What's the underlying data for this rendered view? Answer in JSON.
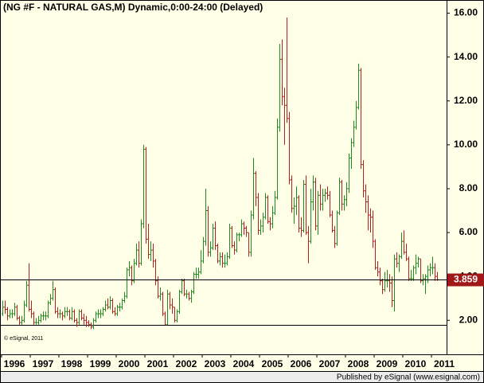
{
  "chart_data": {
    "type": "ohlc",
    "title": "(NG #F - NATURAL GAS,M) Dynamic,0:00-24:00 (Delayed)",
    "watermark": "© eSignal, 2011",
    "footer": "Published by eSignal (www.esignal.com)",
    "up_color": "#1f8a1f",
    "down_color": "#b02020",
    "categories": [
      "1996",
      null,
      null,
      null,
      null,
      null,
      null,
      null,
      null,
      null,
      null,
      null,
      "1997",
      null,
      null,
      null,
      null,
      null,
      null,
      null,
      null,
      null,
      null,
      null,
      "1998",
      null,
      null,
      null,
      null,
      null,
      null,
      null,
      null,
      null,
      null,
      null,
      "1999",
      null,
      null,
      null,
      null,
      null,
      null,
      null,
      null,
      null,
      null,
      null,
      "2000",
      null,
      null,
      null,
      null,
      null,
      null,
      null,
      null,
      null,
      null,
      null,
      "2001",
      null,
      null,
      null,
      null,
      null,
      null,
      null,
      null,
      null,
      null,
      null,
      "2002",
      null,
      null,
      null,
      null,
      null,
      null,
      null,
      null,
      null,
      null,
      null,
      "2003",
      null,
      null,
      null,
      null,
      null,
      null,
      null,
      null,
      null,
      null,
      null,
      "2004",
      null,
      null,
      null,
      null,
      null,
      null,
      null,
      null,
      null,
      null,
      null,
      "2005",
      null,
      null,
      null,
      null,
      null,
      null,
      null,
      null,
      null,
      null,
      null,
      "2006",
      null,
      null,
      null,
      null,
      null,
      null,
      null,
      null,
      null,
      null,
      null,
      "2007",
      null,
      null,
      null,
      null,
      null,
      null,
      null,
      null,
      null,
      null,
      null,
      "2008",
      null,
      null,
      null,
      null,
      null,
      null,
      null,
      null,
      null,
      null,
      null,
      "2009",
      null,
      null,
      null,
      null,
      null,
      null,
      null,
      null,
      null,
      null,
      null,
      "2010",
      null,
      null,
      null,
      null,
      null,
      null,
      null,
      null,
      null,
      null,
      null,
      "2011",
      null,
      null
    ],
    "open": [
      2.3,
      2.6,
      2.5,
      2.2,
      2.3,
      2.3,
      2.6,
      2.1,
      1.9,
      2.0,
      2.7,
      3.6,
      2.5,
      2.3,
      1.9,
      1.9,
      2.0,
      2.2,
      2.2,
      2.2,
      2.8,
      3.0,
      3.4,
      2.4,
      2.3,
      2.3,
      2.2,
      2.4,
      2.4,
      2.1,
      2.4,
      2.0,
      1.9,
      2.4,
      2.1,
      2.0,
      1.9,
      1.8,
      1.7,
      2.0,
      2.3,
      2.3,
      2.3,
      2.5,
      2.7,
      2.6,
      2.9,
      2.4,
      2.3,
      2.6,
      2.6,
      2.9,
      3.1,
      4.3,
      4.4,
      3.8,
      4.6,
      5.2,
      4.6,
      6.4,
      9.8,
      5.7,
      5.0,
      5.2,
      4.7,
      3.8,
      3.1,
      3.2,
      2.3,
      1.8,
      3.2,
      2.7,
      2.6,
      2.0,
      2.4,
      3.3,
      3.8,
      3.2,
      3.2,
      3.0,
      3.3,
      4.1,
      4.1,
      4.2,
      4.7,
      5.6,
      7.0,
      5.1,
      5.3,
      6.2,
      5.4,
      4.7,
      4.9,
      4.6,
      4.6,
      4.9,
      6.2,
      5.4,
      5.2,
      5.9,
      5.9,
      6.4,
      6.2,
      6.0,
      5.1,
      6.8,
      8.7,
      7.6,
      6.1,
      6.3,
      6.7,
      7.6,
      6.5,
      6.4,
      6.9,
      7.6,
      10.8,
      13.9,
      12.2,
      11.8,
      11.2,
      8.4,
      7.1,
      7.2,
      7.6,
      6.2,
      6.1,
      8.2,
      6.0,
      5.6,
      7.4,
      8.3,
      6.3,
      7.7,
      7.3,
      7.7,
      7.8,
      7.7,
      6.8,
      6.1,
      5.5,
      6.9,
      8.3,
      7.3,
      7.5,
      8.0,
      9.4,
      10.1,
      10.8,
      11.7,
      13.4,
      9.1,
      7.9,
      7.4,
      6.8,
      6.7,
      5.6,
      4.4,
      4.2,
      3.8,
      3.4,
      3.8,
      3.8,
      3.7,
      2.9,
      4.8,
      4.6,
      4.9,
      5.6,
      5.1,
      4.8,
      3.9,
      3.9,
      4.4,
      4.6,
      4.8,
      3.8,
      3.9,
      4.0,
      4.3,
      4.4,
      4.4,
      4.0
    ],
    "high": [
      2.9,
      2.9,
      2.6,
      2.5,
      2.5,
      2.8,
      2.7,
      2.2,
      2.2,
      2.9,
      3.8,
      4.6,
      2.9,
      2.4,
      2.1,
      2.2,
      2.3,
      2.4,
      2.4,
      2.9,
      3.2,
      3.8,
      3.5,
      2.6,
      2.5,
      2.4,
      2.6,
      2.6,
      2.5,
      2.6,
      2.5,
      2.1,
      2.5,
      2.5,
      2.3,
      2.2,
      2.0,
      1.9,
      2.1,
      2.4,
      2.5,
      2.5,
      2.6,
      2.9,
      3.0,
      3.1,
      3.0,
      2.6,
      2.7,
      2.8,
      3.0,
      3.3,
      4.4,
      4.7,
      4.5,
      4.8,
      5.5,
      5.6,
      6.6,
      10.0,
      9.9,
      6.4,
      5.6,
      5.5,
      4.8,
      4.0,
      3.5,
      3.3,
      2.4,
      3.4,
      3.3,
      3.0,
      2.6,
      2.5,
      3.4,
      3.9,
      3.9,
      3.4,
      3.3,
      3.4,
      4.2,
      4.4,
      4.4,
      5.2,
      5.8,
      8.0,
      7.2,
      5.6,
      6.4,
      6.5,
      5.5,
      5.1,
      5.1,
      5.0,
      5.1,
      6.4,
      6.3,
      5.6,
      6.0,
      6.0,
      6.6,
      6.5,
      6.3,
      6.0,
      7.0,
      9.4,
      8.8,
      7.8,
      6.6,
      6.9,
      7.8,
      7.7,
      6.7,
      7.2,
      7.9,
      11.2,
      14.6,
      14.8,
      12.6,
      15.8,
      11.5,
      8.6,
      7.6,
      8.1,
      7.7,
      6.7,
      8.4,
      8.6,
      6.3,
      8.0,
      8.6,
      8.5,
      7.9,
      8.2,
      8.0,
      8.0,
      8.1,
      7.9,
      7.0,
      6.3,
      7.0,
      8.5,
      8.4,
      7.7,
      8.3,
      9.6,
      10.3,
      11.1,
      12.0,
      13.7,
      13.5,
      9.3,
      8.2,
      7.7,
      7.1,
      7.0,
      5.7,
      4.7,
      4.4,
      3.9,
      4.2,
      4.3,
      4.1,
      4.0,
      5.0,
      5.1,
      5.0,
      6.0,
      6.1,
      5.5,
      4.9,
      4.3,
      4.5,
      5.0,
      4.9,
      4.8,
      4.1,
      4.1,
      4.5,
      4.6,
      4.9,
      4.6,
      4.2
    ],
    "low": [
      2.2,
      2.3,
      2.0,
      2.1,
      2.1,
      2.2,
      2.0,
      1.8,
      1.8,
      1.9,
      2.6,
      2.4,
      2.1,
      1.8,
      1.8,
      1.8,
      1.9,
      2.0,
      2.0,
      2.1,
      2.7,
      2.9,
      2.3,
      2.1,
      2.1,
      2.0,
      2.1,
      2.2,
      2.0,
      2.0,
      1.9,
      1.7,
      1.8,
      2.0,
      1.8,
      1.7,
      1.7,
      1.6,
      1.6,
      1.9,
      2.1,
      2.1,
      2.2,
      2.4,
      2.5,
      2.5,
      2.3,
      2.2,
      2.2,
      2.4,
      2.5,
      2.8,
      3.0,
      4.0,
      3.6,
      3.7,
      4.5,
      4.4,
      4.5,
      6.2,
      5.5,
      4.8,
      4.7,
      4.4,
      3.6,
      3.0,
      2.9,
      2.2,
      1.8,
      1.8,
      2.5,
      2.3,
      1.9,
      1.9,
      2.3,
      3.2,
      3.1,
      3.0,
      2.9,
      2.8,
      3.2,
      3.9,
      3.9,
      4.1,
      4.6,
      5.4,
      4.9,
      4.9,
      5.2,
      5.2,
      4.6,
      4.5,
      4.4,
      4.4,
      4.5,
      4.8,
      5.3,
      5.0,
      5.1,
      5.6,
      5.8,
      5.9,
      5.8,
      4.9,
      4.9,
      6.6,
      7.2,
      5.9,
      5.9,
      6.0,
      6.6,
      6.4,
      6.1,
      6.2,
      6.8,
      7.5,
      10.6,
      11.8,
      10.0,
      11.0,
      8.2,
      6.9,
      6.4,
      6.8,
      6.0,
      5.8,
      6.0,
      5.9,
      4.6,
      5.5,
      7.0,
      6.1,
      5.9,
      7.0,
      7.0,
      7.4,
      7.5,
      6.7,
      6.0,
      5.3,
      5.4,
      6.8,
      7.0,
      7.0,
      7.2,
      7.8,
      8.9,
      9.9,
      10.7,
      11.6,
      8.9,
      7.6,
      6.9,
      6.1,
      6.0,
      5.3,
      4.3,
      4.0,
      3.6,
      3.2,
      3.3,
      3.5,
      3.3,
      2.6,
      2.4,
      4.4,
      4.2,
      4.8,
      5.0,
      4.7,
      3.8,
      3.8,
      3.8,
      4.1,
      4.4,
      3.7,
      3.6,
      3.2,
      3.7,
      4.0,
      4.1,
      3.8,
      3.8
    ],
    "close": [
      2.6,
      2.5,
      2.2,
      2.3,
      2.3,
      2.6,
      2.1,
      1.9,
      2.0,
      2.7,
      3.6,
      2.5,
      2.3,
      1.9,
      1.9,
      2.0,
      2.2,
      2.2,
      2.2,
      2.8,
      3.0,
      3.4,
      2.4,
      2.3,
      2.3,
      2.2,
      2.4,
      2.4,
      2.1,
      2.4,
      2.0,
      1.9,
      2.4,
      2.1,
      2.0,
      1.9,
      1.8,
      1.7,
      2.0,
      2.3,
      2.3,
      2.3,
      2.5,
      2.7,
      2.6,
      2.9,
      2.4,
      2.3,
      2.6,
      2.6,
      2.9,
      3.1,
      4.3,
      4.4,
      3.8,
      4.6,
      5.2,
      4.6,
      6.4,
      9.8,
      5.7,
      5.0,
      5.2,
      4.7,
      3.8,
      3.1,
      3.2,
      2.3,
      1.8,
      3.2,
      2.7,
      2.6,
      2.0,
      2.4,
      3.3,
      3.8,
      3.2,
      3.2,
      3.0,
      3.3,
      4.1,
      4.1,
      4.2,
      4.7,
      5.6,
      7.0,
      5.1,
      5.3,
      6.2,
      5.4,
      4.7,
      4.9,
      4.6,
      4.6,
      4.9,
      6.2,
      5.4,
      5.2,
      5.9,
      5.9,
      6.4,
      6.2,
      6.0,
      5.1,
      6.8,
      8.7,
      7.6,
      6.1,
      6.3,
      6.7,
      7.6,
      6.5,
      6.4,
      6.9,
      7.6,
      10.8,
      13.9,
      12.2,
      11.8,
      11.2,
      8.4,
      7.1,
      7.2,
      7.6,
      6.2,
      6.1,
      8.2,
      6.0,
      5.6,
      7.4,
      8.3,
      6.3,
      7.7,
      7.3,
      7.7,
      7.8,
      7.7,
      6.8,
      6.1,
      5.5,
      6.9,
      8.3,
      7.3,
      7.5,
      8.0,
      9.4,
      10.1,
      10.8,
      11.7,
      13.4,
      9.1,
      7.9,
      7.4,
      6.8,
      6.7,
      5.6,
      4.4,
      4.2,
      3.8,
      3.4,
      3.8,
      3.8,
      3.7,
      2.9,
      4.8,
      4.6,
      4.9,
      5.6,
      5.1,
      4.8,
      3.9,
      3.9,
      4.4,
      4.6,
      4.8,
      3.8,
      3.9,
      4.0,
      4.3,
      4.4,
      4.4,
      4.0,
      3.859
    ],
    "hlines": [
      1.78
    ],
    "ylim": [
      0.45,
      16.6
    ],
    "yticks": [
      {
        "value": 2,
        "label": "2.00"
      },
      {
        "value": 4,
        "label": "4.00"
      },
      {
        "value": 6,
        "label": "6.00"
      },
      {
        "value": 8,
        "label": "8.00"
      },
      {
        "value": 10,
        "label": "10.00"
      },
      {
        "value": 12,
        "label": "12.00"
      },
      {
        "value": 14,
        "label": "14.00"
      },
      {
        "value": 16,
        "label": "16.00"
      }
    ]
  }
}
